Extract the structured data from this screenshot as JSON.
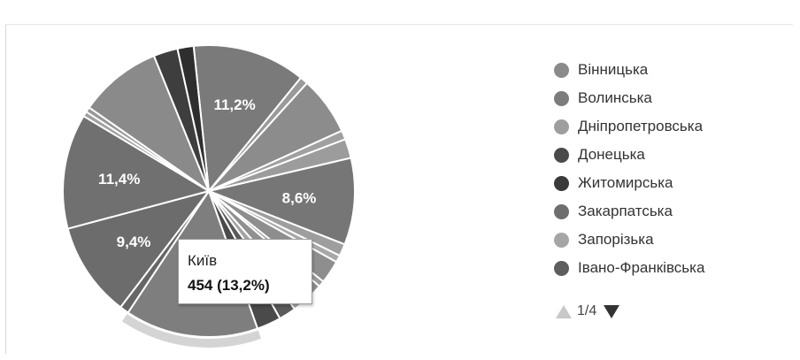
{
  "chart_data": {
    "type": "pie",
    "slice_labels": [
      "11,2%",
      "8,6%",
      "11,4%",
      "9,4%"
    ],
    "legend": [
      {
        "name": "Вінницька",
        "color": "#8a8a8a"
      },
      {
        "name": "Волинська",
        "color": "#7c7c7c"
      },
      {
        "name": "Дніпропетровська",
        "color": "#9e9e9e"
      },
      {
        "name": "Донецька",
        "color": "#4a4a4a"
      },
      {
        "name": "Житомирська",
        "color": "#3a3a3a"
      },
      {
        "name": "Закарпатська",
        "color": "#6e6e6e"
      },
      {
        "name": "Запорізька",
        "color": "#a6a6a6"
      },
      {
        "name": "Івано-Франківська",
        "color": "#5e5e5e"
      }
    ],
    "slices": [
      {
        "value": 11.2,
        "color": "#7a7a7a",
        "label": "11,2%"
      },
      {
        "value": 0.8,
        "color": "#9a9a9a"
      },
      {
        "value": 5.8,
        "color": "#8c8c8c"
      },
      {
        "value": 0.9,
        "color": "#a0a0a0"
      },
      {
        "value": 1.9,
        "color": "#9c9c9c"
      },
      {
        "value": 8.6,
        "color": "#767676",
        "label": "8,6%"
      },
      {
        "value": 1.2,
        "color": "#9e9e9e"
      },
      {
        "value": 0.7,
        "color": "#a8a8a8"
      },
      {
        "value": 2.3,
        "color": "#8e8e8e"
      },
      {
        "value": 0.6,
        "color": "#9a9a9a"
      },
      {
        "value": 1.9,
        "color": "#909090"
      },
      {
        "value": 1.4,
        "color": "#a4a4a4"
      },
      {
        "value": 1.7,
        "color": "#5a5a5a"
      },
      {
        "value": 2.4,
        "color": "#4a4a4a"
      },
      {
        "value": 13.2,
        "color": "#7e7e7e",
        "explode": true
      },
      {
        "value": 0.9,
        "color": "#666666"
      },
      {
        "value": 9.4,
        "color": "#6c6c6c",
        "label": "9,4%"
      },
      {
        "value": 11.4,
        "color": "#707070",
        "label": "11,4%"
      },
      {
        "value": 0.5,
        "color": "#a0a0a0"
      },
      {
        "value": 0.5,
        "color": "#969696"
      },
      {
        "value": 8.2,
        "color": "#8a8a8a"
      },
      {
        "value": 2.4,
        "color": "#3e3e3e"
      },
      {
        "value": 1.6,
        "color": "#2e2e2e"
      }
    ],
    "tooltip": {
      "name": "Київ",
      "value": "454 (13,2%)"
    }
  },
  "pager": {
    "label": "1/4"
  }
}
